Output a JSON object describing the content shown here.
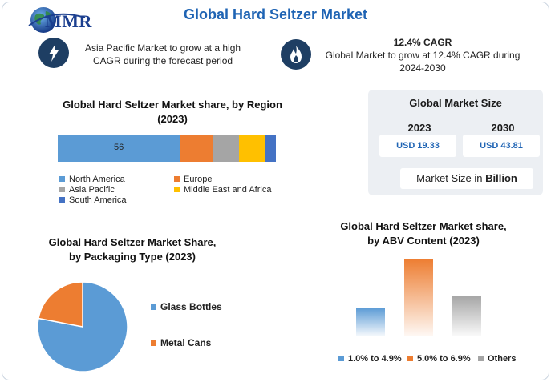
{
  "header": {
    "logo_text": "MMR",
    "title": "Global Hard Seltzer Market"
  },
  "info": {
    "left_line1": "Asia Pacific Market to grow at a high",
    "left_line2": "CAGR during the forecast period",
    "right_bold": "12.4% CAGR",
    "right_line1": "Global Market to grow at 12.4% CAGR during",
    "right_line2": "2024-2030",
    "left_icon": "lightning-icon",
    "right_icon": "flame-icon"
  },
  "market_size": {
    "title": "Global Market Size",
    "years": [
      "2023",
      "2030"
    ],
    "values": [
      "USD 19.33",
      "USD 43.81"
    ],
    "unit_prefix": "Market Size in ",
    "unit_bold": "Billion"
  },
  "colors": {
    "north_america": "#5b9bd5",
    "europe": "#ed7d31",
    "asia_pacific": "#a5a5a5",
    "middle_east": "#ffc000",
    "south_america": "#4472c4",
    "brand": "#1f64b4",
    "icon_bg": "#1e3e63"
  },
  "chart_data": [
    {
      "type": "bar",
      "orientation": "horizontal-stacked",
      "title_line1": "Global Hard Seltzer Market share, by Region",
      "title_line2": "(2023)",
      "categories": [
        "North America",
        "Europe",
        "Asia Pacific",
        "Middle East and Africa",
        "South America"
      ],
      "values": [
        56,
        15,
        12,
        12,
        5
      ],
      "data_labels": [
        "56",
        "",
        "",
        "",
        ""
      ],
      "colors": [
        "#5b9bd5",
        "#ed7d31",
        "#a5a5a5",
        "#ffc000",
        "#4472c4"
      ],
      "legend_placement": "bottom",
      "grid": false
    },
    {
      "type": "pie",
      "title_line1": "Global Hard Seltzer Market Share,",
      "title_line2": "by Packaging Type (2023)",
      "categories": [
        "Glass Bottles",
        "Metal Cans"
      ],
      "values": [
        78,
        22
      ],
      "colors": [
        "#5b9bd5",
        "#ed7d31"
      ],
      "legend_placement": "right"
    },
    {
      "type": "bar",
      "title_line1": "Global Hard Seltzer Market share,",
      "title_line2": "by ABV Content (2023)",
      "categories": [
        "1.0% to 4.9%",
        "5.0% to 6.9%",
        "Others"
      ],
      "values": [
        35,
        95,
        50
      ],
      "ylim": [
        0,
        100
      ],
      "colors": [
        "#5b9bd5",
        "#ed7d31",
        "#a5a5a5"
      ],
      "legend_placement": "bottom",
      "grid": false
    }
  ]
}
